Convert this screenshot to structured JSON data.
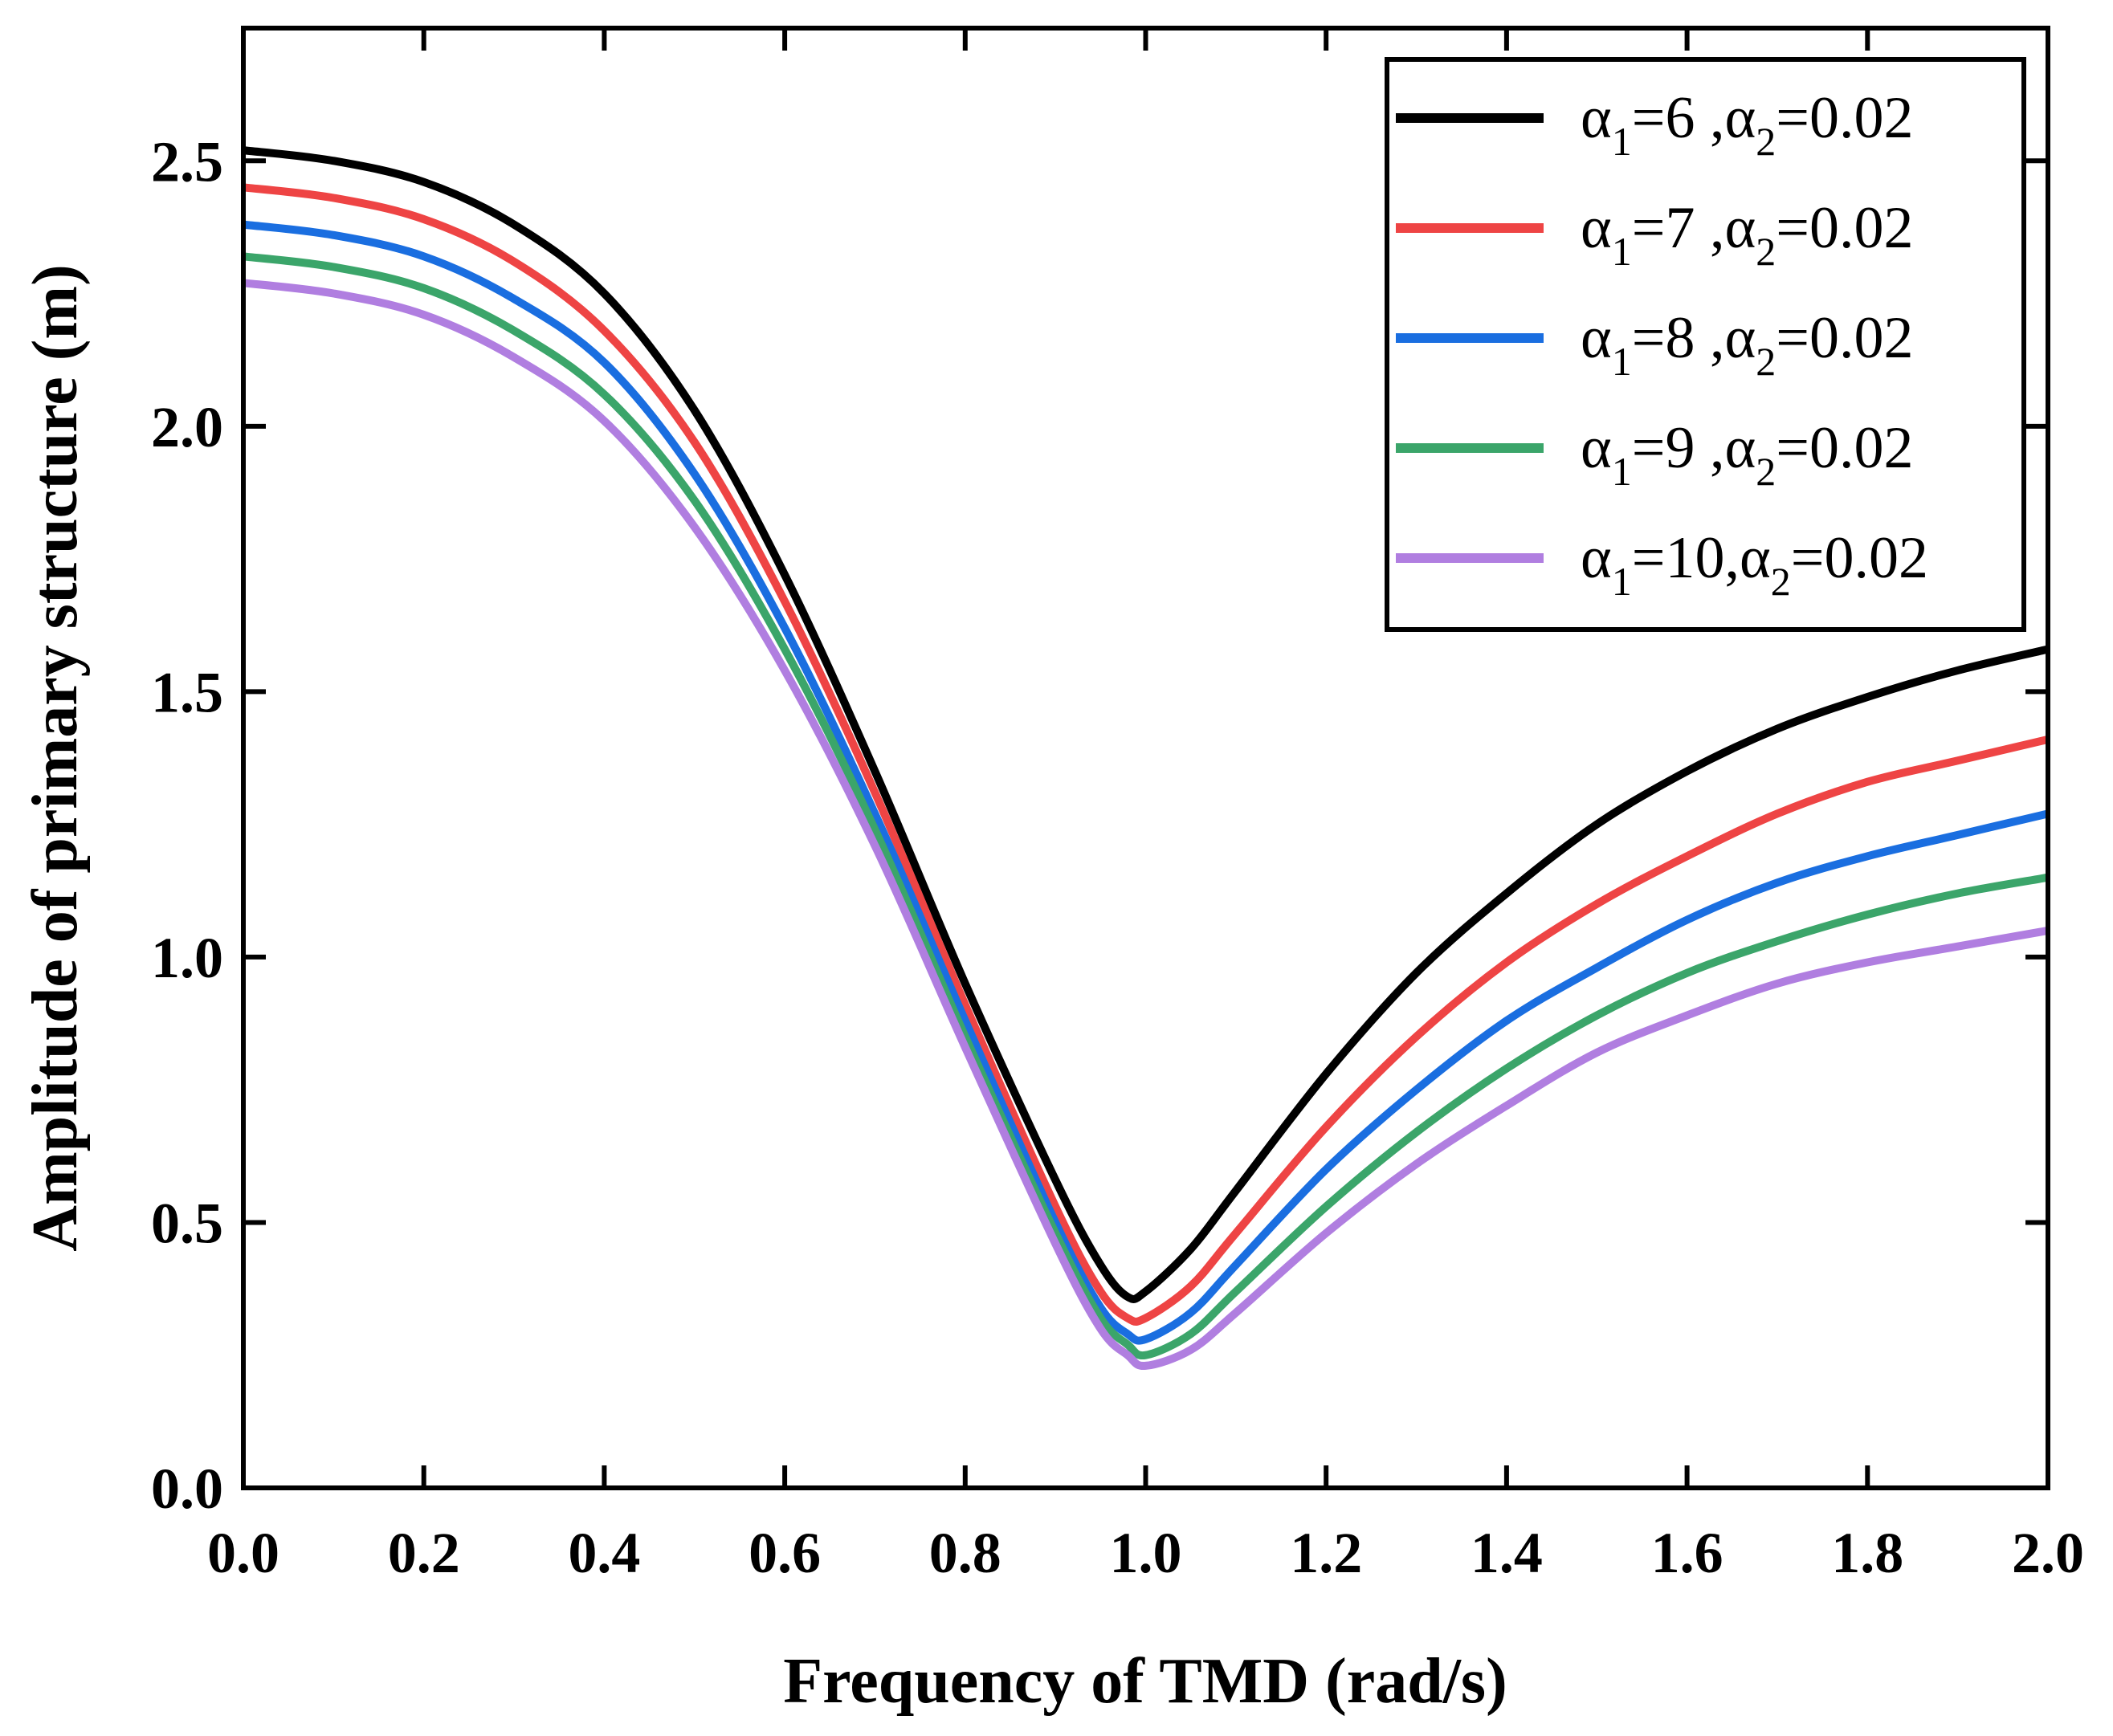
{
  "chart_data": {
    "type": "line",
    "title": "",
    "xlabel": "Frequency of TMD (rad/s)",
    "ylabel": "Amplitude of primary structure (m)",
    "xlim": [
      0.0,
      2.0
    ],
    "ylim": [
      0.0,
      2.75
    ],
    "xticks": [
      "0.0",
      "0.2",
      "0.4",
      "0.6",
      "0.8",
      "1.0",
      "1.2",
      "1.4",
      "1.6",
      "1.8",
      "2.0"
    ],
    "yticks": [
      "0.0",
      "0.5",
      "1.0",
      "1.5",
      "2.0",
      "2.5"
    ],
    "legend_position": "top-right",
    "x": [
      0.0,
      0.1,
      0.2,
      0.3,
      0.4,
      0.5,
      0.6,
      0.7,
      0.8,
      0.9,
      0.95,
      0.98,
      1.0,
      1.05,
      1.1,
      1.2,
      1.3,
      1.4,
      1.5,
      1.6,
      1.7,
      1.8,
      1.9,
      2.0
    ],
    "series": [
      {
        "name": "α1=6  ,α2=0.02",
        "label_parts": [
          "α",
          "1",
          "=6  ,α",
          "2",
          "=0.02"
        ],
        "color": "#000000",
        "values": [
          2.52,
          2.5,
          2.46,
          2.38,
          2.25,
          2.03,
          1.72,
          1.35,
          0.95,
          0.58,
          0.42,
          0.36,
          0.37,
          0.45,
          0.56,
          0.78,
          0.97,
          1.12,
          1.25,
          1.35,
          1.43,
          1.49,
          1.54,
          1.58
        ]
      },
      {
        "name": "α1=7  ,α2=0.02",
        "label_parts": [
          "α",
          "1",
          "=7  ,α",
          "2",
          "=0.02"
        ],
        "color": "#ee4444",
        "values": [
          2.45,
          2.43,
          2.39,
          2.31,
          2.18,
          1.97,
          1.67,
          1.31,
          0.91,
          0.53,
          0.37,
          0.32,
          0.32,
          0.38,
          0.48,
          0.68,
          0.85,
          0.99,
          1.1,
          1.19,
          1.27,
          1.33,
          1.37,
          1.41
        ]
      },
      {
        "name": "α1=8  ,α2=0.02",
        "label_parts": [
          "α",
          "1",
          "=8  ,α",
          "2",
          "=0.02"
        ],
        "color": "#1a6ee0",
        "values": [
          2.38,
          2.36,
          2.32,
          2.24,
          2.12,
          1.91,
          1.62,
          1.27,
          0.88,
          0.5,
          0.34,
          0.29,
          0.28,
          0.33,
          0.42,
          0.6,
          0.75,
          0.88,
          0.98,
          1.07,
          1.14,
          1.19,
          1.23,
          1.27
        ]
      },
      {
        "name": "α1=9  ,α2=0.02",
        "label_parts": [
          "α",
          "1",
          "=9  ,α",
          "2",
          "=0.02"
        ],
        "color": "#3ba56a",
        "values": [
          2.32,
          2.3,
          2.26,
          2.18,
          2.06,
          1.86,
          1.58,
          1.24,
          0.85,
          0.48,
          0.32,
          0.27,
          0.25,
          0.29,
          0.37,
          0.53,
          0.67,
          0.79,
          0.89,
          0.97,
          1.03,
          1.08,
          1.12,
          1.15
        ]
      },
      {
        "name": "α1=10,α2=0.02",
        "label_parts": [
          "α",
          "1",
          "=10,α",
          "2",
          "=0.02"
        ],
        "color": "#b07ee0",
        "values": [
          2.27,
          2.25,
          2.21,
          2.13,
          2.01,
          1.81,
          1.54,
          1.21,
          0.83,
          0.46,
          0.3,
          0.25,
          0.23,
          0.26,
          0.33,
          0.48,
          0.61,
          0.72,
          0.82,
          0.89,
          0.95,
          0.99,
          1.02,
          1.05
        ]
      }
    ]
  }
}
